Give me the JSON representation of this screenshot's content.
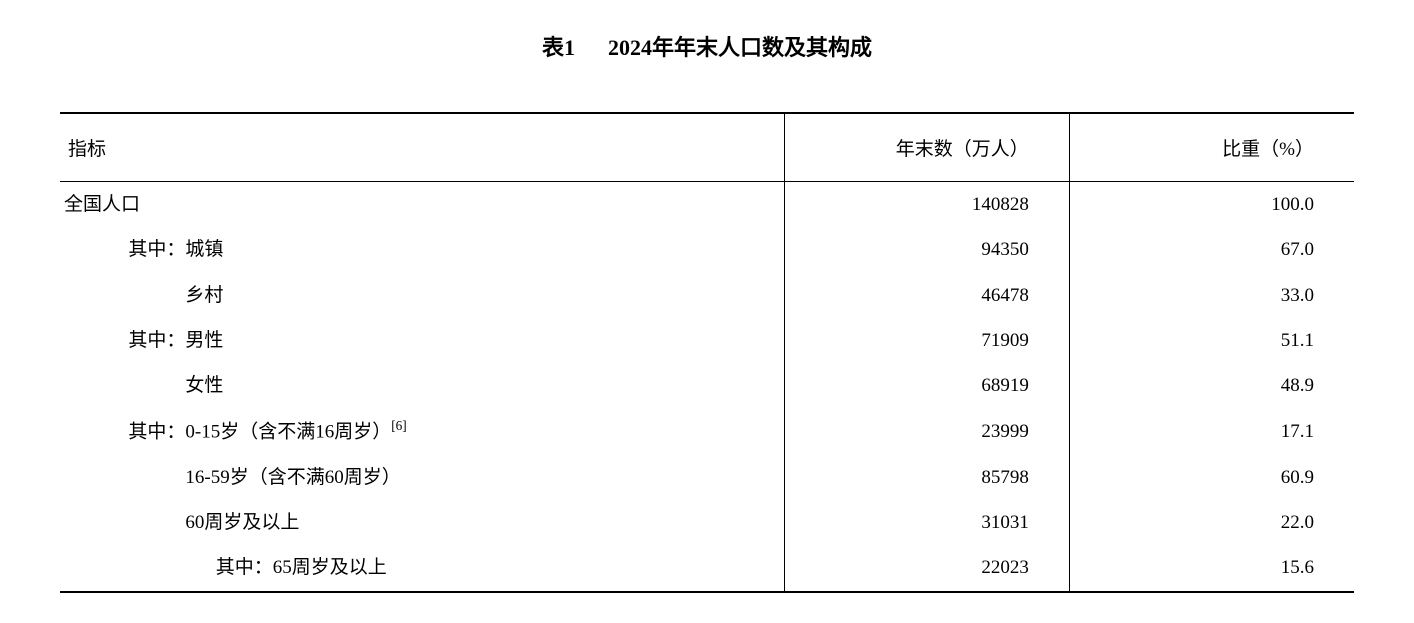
{
  "title_prefix": "表1",
  "title_main": "2024年年末人口数及其构成",
  "table": {
    "columns": [
      "指标",
      "年末数（万人）",
      "比重（%）"
    ],
    "column_align": [
      "left",
      "right",
      "right"
    ],
    "column_widths_pct": [
      56,
      22,
      22
    ],
    "border_heavy_color": "#000000",
    "border_light_color": "#000000",
    "background_color": "#ffffff",
    "text_color": "#000000",
    "header_fontsize": 19,
    "body_fontsize": 19,
    "title_fontsize": 22,
    "rows": [
      {
        "indicator": "全国人口",
        "indent": 0,
        "count": "140828",
        "pct": "100.0",
        "footnote": ""
      },
      {
        "indicator": "其中：城镇",
        "indent": 1,
        "count": "94350",
        "pct": "67.0",
        "footnote": ""
      },
      {
        "indicator": "乡村",
        "indent": 2,
        "count": "46478",
        "pct": "33.0",
        "footnote": ""
      },
      {
        "indicator": "其中：男性",
        "indent": 1,
        "count": "71909",
        "pct": "51.1",
        "footnote": ""
      },
      {
        "indicator": "女性",
        "indent": 2,
        "count": "68919",
        "pct": "48.9",
        "footnote": ""
      },
      {
        "indicator": "其中：0-15岁（含不满16周岁）",
        "indent": 1,
        "count": "23999",
        "pct": "17.1",
        "footnote": "[6]"
      },
      {
        "indicator": "16-59岁（含不满60周岁）",
        "indent": 2,
        "count": "85798",
        "pct": "60.9",
        "footnote": ""
      },
      {
        "indicator": "60周岁及以上",
        "indent": 2,
        "count": "31031",
        "pct": "22.0",
        "footnote": ""
      },
      {
        "indicator": "其中：65周岁及以上",
        "indent": 3,
        "count": "22023",
        "pct": "15.6",
        "footnote": ""
      }
    ]
  }
}
